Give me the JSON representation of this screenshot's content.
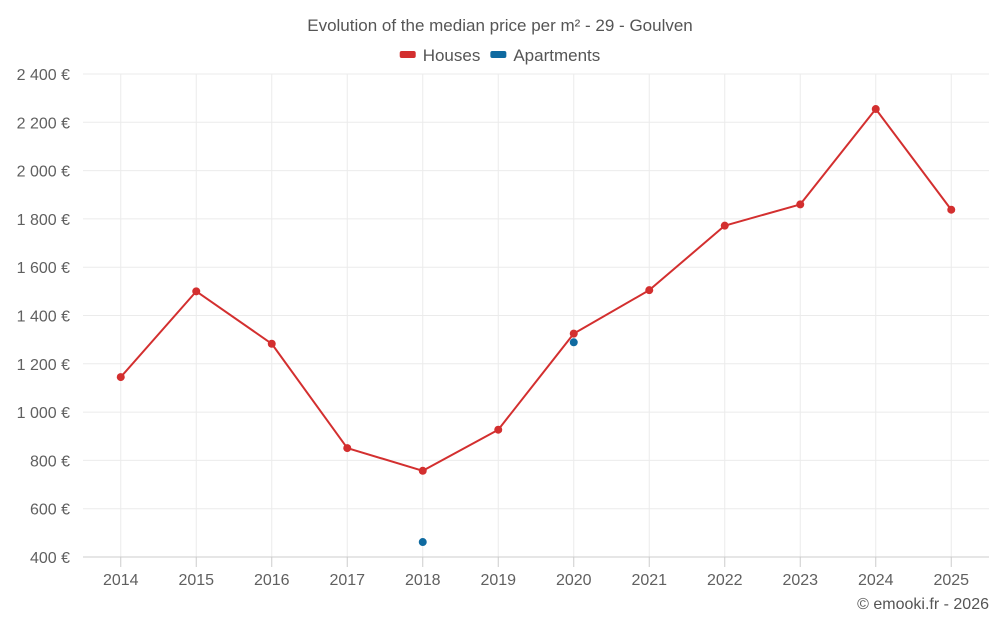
{
  "chart_data": {
    "type": "line",
    "title": "Evolution of the median price per m² - 29 - Goulven",
    "credit": "© emooki.fr - 2026",
    "categories": [
      "2014",
      "2015",
      "2016",
      "2017",
      "2018",
      "2019",
      "2020",
      "2021",
      "2022",
      "2023",
      "2024",
      "2025"
    ],
    "ylim": [
      400,
      2400
    ],
    "yticks": [
      400,
      600,
      800,
      1000,
      1200,
      1400,
      1600,
      1800,
      2000,
      2200,
      2400
    ],
    "ytick_labels": [
      "400 €",
      "600 €",
      "800 €",
      "1 000 €",
      "1 200 €",
      "1 400 €",
      "1 600 €",
      "1 800 €",
      "2 000 €",
      "2 200 €",
      "2 400 €"
    ],
    "legend_position": "top-center",
    "series": [
      {
        "name": "Houses",
        "color": "#d32f2f",
        "values": [
          1145,
          1500,
          1283,
          851,
          757,
          927,
          1325,
          1505,
          1772,
          1860,
          2255,
          1838
        ]
      },
      {
        "name": "Apartments",
        "color": "#0f6aa0",
        "values": [
          null,
          null,
          null,
          null,
          462,
          null,
          1289,
          null,
          null,
          null,
          null,
          null
        ]
      }
    ]
  }
}
